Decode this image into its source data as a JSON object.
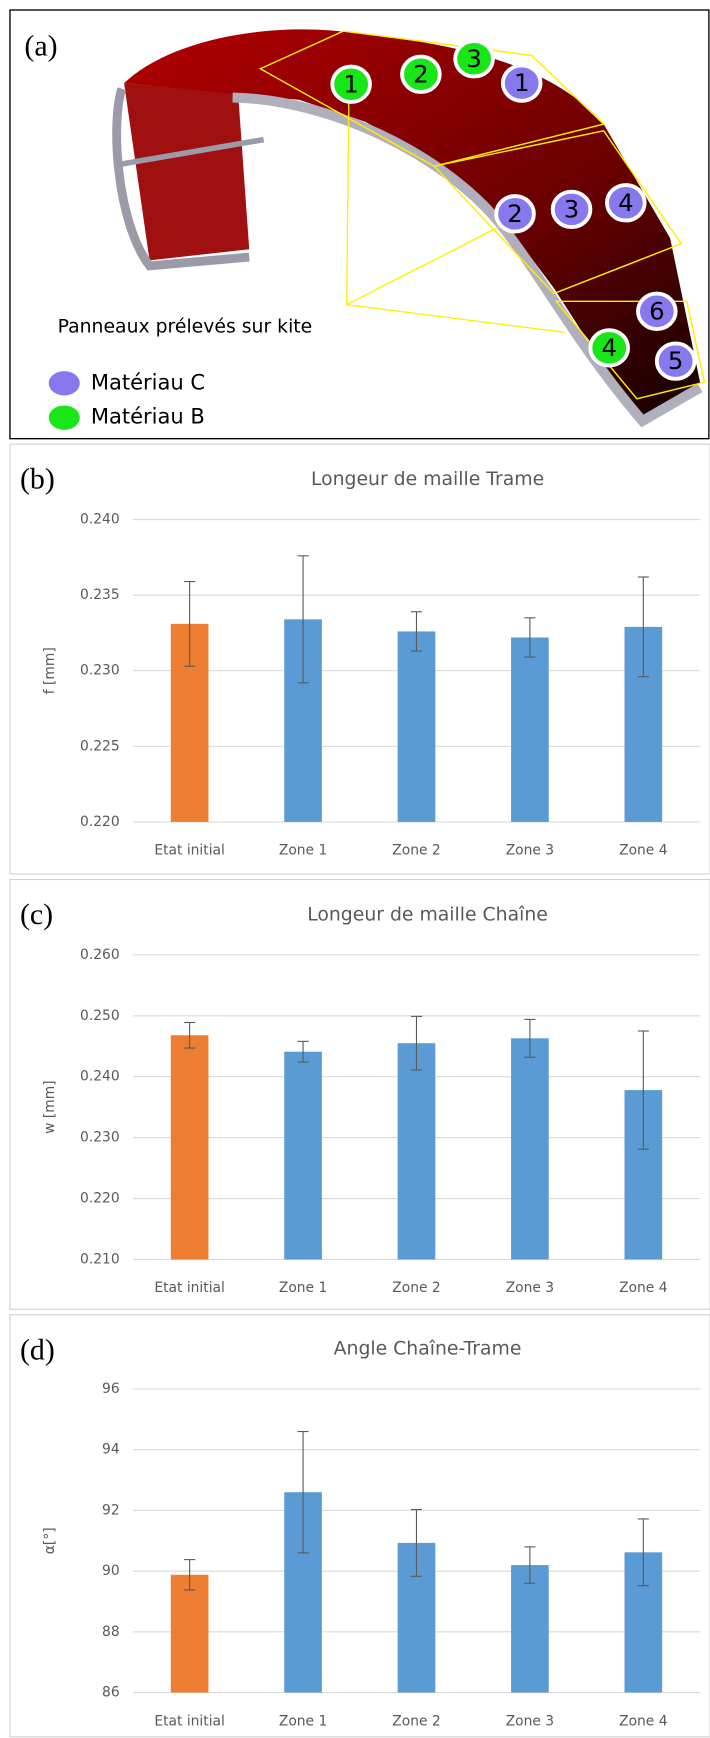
{
  "kite": {
    "label": "(a)",
    "annotation": "Panneaux prélevés sur kite",
    "legend": [
      {
        "name": "Matériau C",
        "color": "#8878ee",
        "panels": [
          "1",
          "2",
          "3",
          "4",
          "5",
          "6"
        ]
      },
      {
        "name": "Matériau B",
        "color": "#19e619",
        "panels": [
          "1",
          "2",
          "3",
          "4"
        ]
      }
    ]
  },
  "chart_data": [
    {
      "type": "bar",
      "label": "(b)",
      "title": "Longeur de maille Trame",
      "y_label": "f [mm]",
      "categories": [
        "Etat initial",
        "Zone 1",
        "Zone 2",
        "Zone 3",
        "Zone 4"
      ],
      "values": [
        0.2331,
        0.2334,
        0.2326,
        0.2322,
        0.2329
      ],
      "errors": [
        0.0028,
        0.0042,
        0.0013,
        0.0013,
        0.0033
      ],
      "colors": [
        "#ed7d31",
        "#5b9bd5",
        "#5b9bd5",
        "#5b9bd5",
        "#5b9bd5"
      ],
      "ylim": [
        0.22,
        0.24
      ],
      "yticks": [
        {
          "value": 0.22,
          "label": "0.220"
        },
        {
          "value": 0.225,
          "label": "0.225"
        },
        {
          "value": 0.23,
          "label": "0.230"
        },
        {
          "value": 0.235,
          "label": "0.235"
        },
        {
          "value": 0.24,
          "label": "0.240"
        }
      ],
      "grid": true
    },
    {
      "type": "bar",
      "label": "(c)",
      "title": "Longeur de maille Chaîne",
      "y_label": "w [mm]",
      "categories": [
        "Etat initial",
        "Zone 1",
        "Zone 2",
        "Zone 3",
        "Zone 4"
      ],
      "values": [
        0.2468,
        0.2441,
        0.2455,
        0.2463,
        0.2378
      ],
      "errors": [
        0.0021,
        0.0017,
        0.0044,
        0.0031,
        0.0097
      ],
      "colors": [
        "#ed7d31",
        "#5b9bd5",
        "#5b9bd5",
        "#5b9bd5",
        "#5b9bd5"
      ],
      "ylim": [
        0.21,
        0.26
      ],
      "yticks": [
        {
          "value": 0.21,
          "label": "0.210"
        },
        {
          "value": 0.22,
          "label": "0.220"
        },
        {
          "value": 0.23,
          "label": "0.230"
        },
        {
          "value": 0.24,
          "label": "0.240"
        },
        {
          "value": 0.25,
          "label": "0.250"
        },
        {
          "value": 0.26,
          "label": "0.260"
        }
      ],
      "grid": true
    },
    {
      "type": "bar",
      "label": "(d)",
      "title": "Angle Chaîne-Trame",
      "y_label": "α[°]",
      "categories": [
        "Etat initial",
        "Zone 1",
        "Zone 2",
        "Zone 3",
        "Zone 4"
      ],
      "values": [
        89.88,
        92.6,
        90.93,
        90.2,
        90.62
      ],
      "errors": [
        0.5,
        2.0,
        1.1,
        0.6,
        1.1
      ],
      "colors": [
        "#ed7d31",
        "#5b9bd5",
        "#5b9bd5",
        "#5b9bd5",
        "#5b9bd5"
      ],
      "ylim": [
        86,
        96
      ],
      "yticks": [
        86,
        88,
        90,
        92,
        94,
        96
      ],
      "grid": true
    }
  ]
}
